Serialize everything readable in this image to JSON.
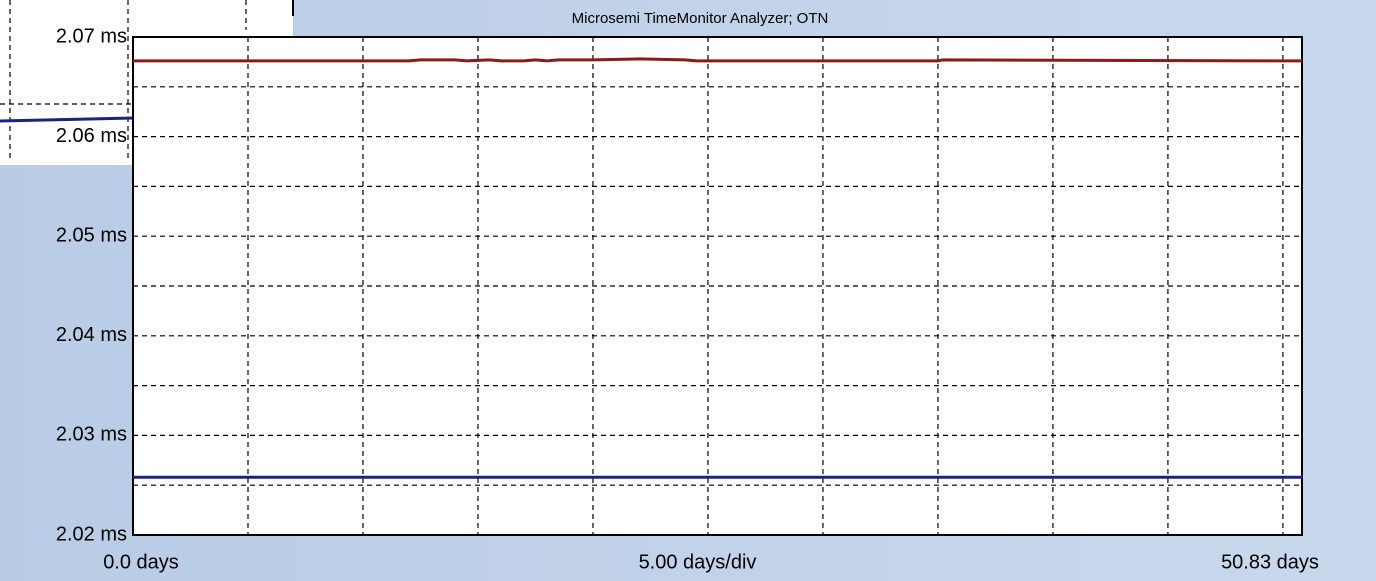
{
  "chart_data": {
    "type": "line",
    "title": "Microsemi TimeMonitor Analyzer; OTN",
    "x_labels": [
      "0.0 days",
      "5.00 days/div",
      "50.83 days"
    ],
    "xlim": [
      0,
      50.83
    ],
    "xticks": [
      0,
      5,
      10,
      15,
      20,
      25,
      30,
      35,
      40,
      45,
      50
    ],
    "ylim": [
      2.02,
      2.07
    ],
    "yticks": [
      {
        "value": 2.02,
        "label": "2.02 ms"
      },
      {
        "value": 2.03,
        "label": "2.03 ms"
      },
      {
        "value": 2.04,
        "label": "2.04 ms"
      },
      {
        "value": 2.05,
        "label": "2.05 ms"
      },
      {
        "value": 2.06,
        "label": "2.06 ms"
      },
      {
        "value": 2.07,
        "label": "2.07 ms"
      }
    ],
    "yminor": [
      2.025,
      2.035,
      2.045,
      2.055,
      2.065
    ],
    "grid": true,
    "series": [
      {
        "color": "#8b1a1a",
        "x": [
          0,
          12,
          12.5,
          14,
          14.5,
          15.5,
          16,
          17,
          17.5,
          18,
          18.5,
          20,
          22,
          24,
          24.5,
          35,
          35.2,
          50.83
        ],
        "values": [
          2.0676,
          2.0676,
          2.0677,
          2.0677,
          2.0676,
          2.0677,
          2.0676,
          2.0676,
          2.0677,
          2.0676,
          2.0677,
          2.0677,
          2.0678,
          2.0677,
          2.0676,
          2.0676,
          2.0677,
          2.0676
        ]
      },
      {
        "color": "#1a237e",
        "x": [
          0,
          50.83
        ],
        "values": [
          2.0258,
          2.0258
        ]
      }
    ]
  }
}
